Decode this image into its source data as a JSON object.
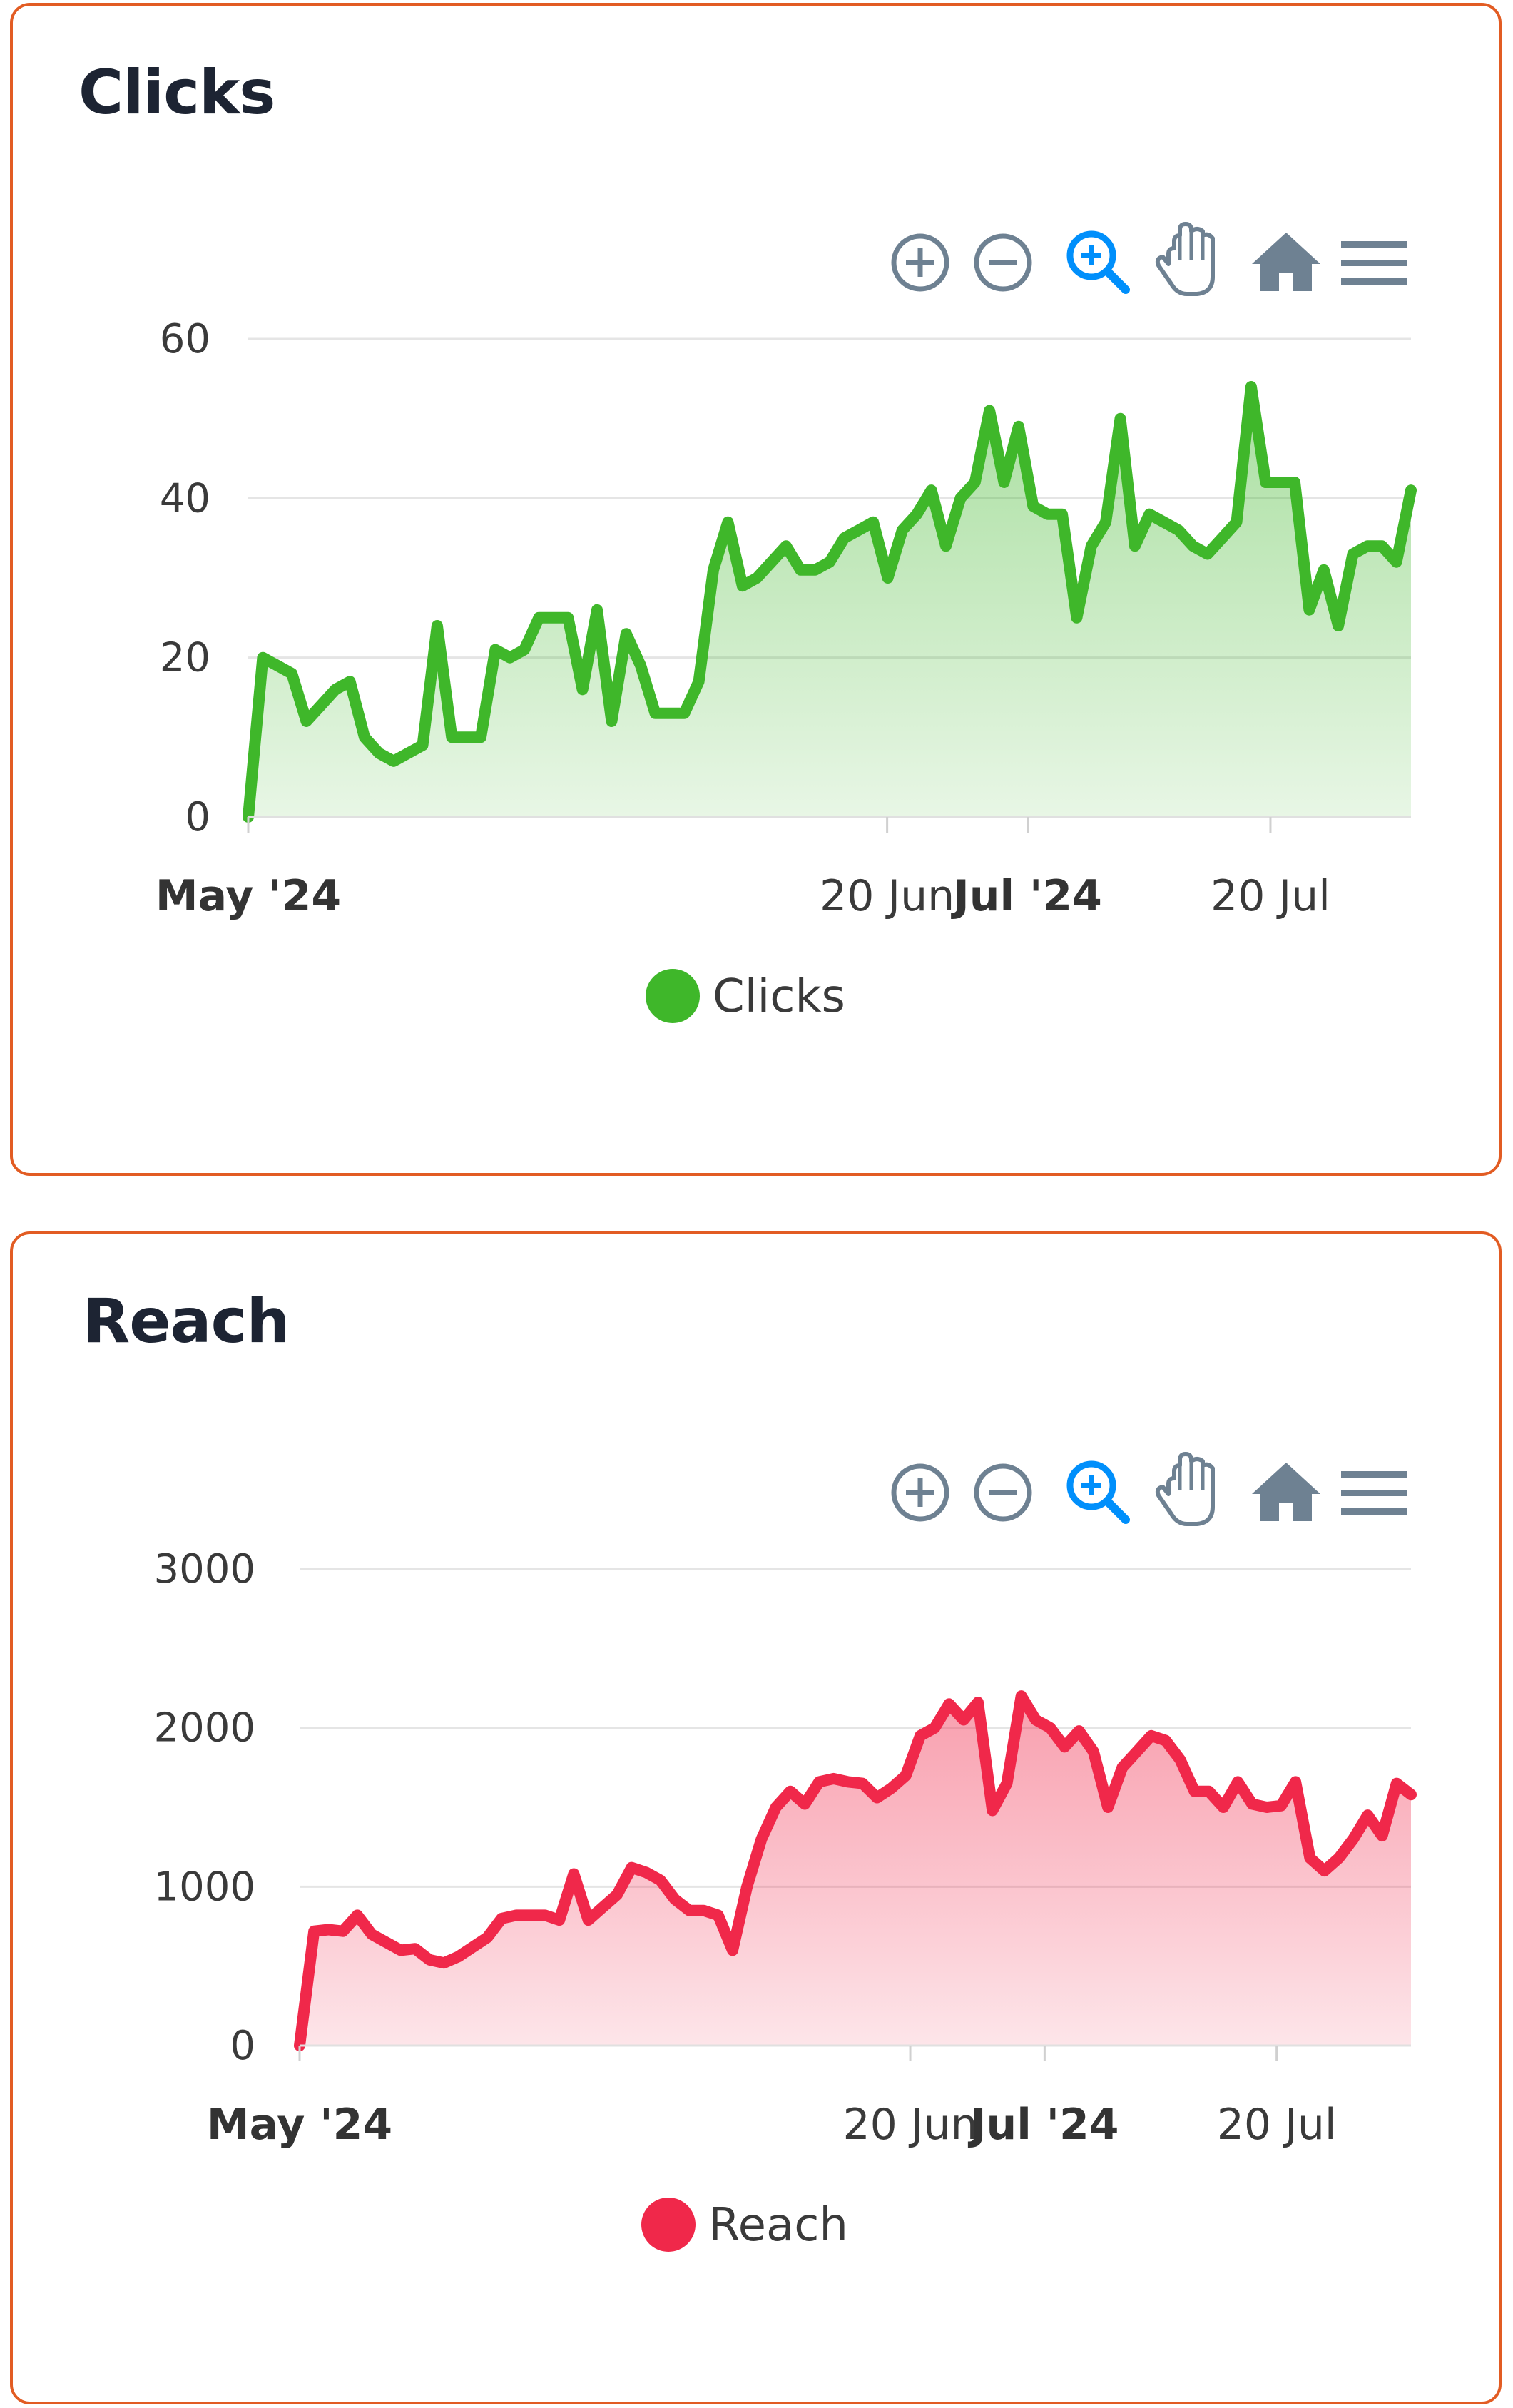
{
  "colors": {
    "card_border": "#e25c23",
    "title": "#1d2433",
    "toolbar_icon": "#6e8192",
    "toolbar_active": "#008ffb",
    "grid": "#e5e5e5"
  },
  "toolbar": {
    "icons": [
      "zoom-in-icon",
      "zoom-out-icon",
      "selection-zoom-icon",
      "pan-icon",
      "reset-home-icon",
      "menu-icon"
    ]
  },
  "chart_data": [
    {
      "type": "area",
      "title": "Clicks",
      "color": "#3fb72a",
      "x_start": "2024-05-01",
      "x_end": "2024-07-31",
      "ylim": [
        0,
        60
      ],
      "yticks": [
        0,
        20,
        40,
        60
      ],
      "xticks": [
        {
          "label": "May '24",
          "date": "2024-05-01",
          "major": true
        },
        {
          "label": "20 Jun",
          "date": "2024-06-20",
          "major": false
        },
        {
          "label": "Jul '24",
          "date": "2024-07-01",
          "major": true
        },
        {
          "label": "20 Jul",
          "date": "2024-07-20",
          "major": false
        }
      ],
      "legend": "bottom-center",
      "grid": true,
      "series": [
        {
          "name": "Clicks",
          "values": [
            0,
            20,
            19,
            18,
            12,
            14,
            16,
            17,
            10,
            8,
            7,
            8,
            9,
            24,
            10,
            10,
            10,
            21,
            20,
            21,
            25,
            25,
            25,
            16,
            26,
            12,
            23,
            19,
            13,
            13,
            13,
            17,
            31,
            37,
            29,
            30,
            32,
            34,
            31,
            31,
            32,
            35,
            36,
            37,
            30,
            36,
            38,
            41,
            34,
            40,
            42,
            51,
            42,
            49,
            39,
            38,
            38,
            25,
            34,
            37,
            50,
            34,
            38,
            37,
            36,
            34,
            33,
            35,
            37,
            54,
            42,
            42,
            42,
            26,
            31,
            24,
            33,
            34,
            34,
            32,
            41
          ]
        }
      ]
    },
    {
      "type": "area",
      "title": "Reach",
      "color": "#f0284a",
      "x_start": "2024-05-01",
      "x_end": "2024-07-31",
      "ylim": [
        0,
        3000
      ],
      "yticks": [
        0,
        1000,
        2000,
        3000
      ],
      "xticks": [
        {
          "label": "May '24",
          "date": "2024-05-01",
          "major": true
        },
        {
          "label": "20 Jun",
          "date": "2024-06-20",
          "major": false
        },
        {
          "label": "Jul '24",
          "date": "2024-07-01",
          "major": true
        },
        {
          "label": "20 Jul",
          "date": "2024-07-20",
          "major": false
        }
      ],
      "legend": "bottom-center",
      "grid": true,
      "series": [
        {
          "name": "Reach",
          "values": [
            0,
            720,
            730,
            720,
            820,
            700,
            650,
            600,
            610,
            540,
            520,
            560,
            620,
            680,
            800,
            820,
            820,
            820,
            790,
            1080,
            790,
            870,
            950,
            1120,
            1090,
            1040,
            920,
            850,
            850,
            820,
            600,
            1000,
            1300,
            1500,
            1600,
            1520,
            1660,
            1680,
            1660,
            1650,
            1560,
            1620,
            1700,
            1950,
            2000,
            2150,
            2050,
            2160,
            1480,
            1650,
            2200,
            2050,
            2000,
            1880,
            1980,
            1850,
            1500,
            1750,
            1850,
            1950,
            1920,
            1800,
            1600,
            1600,
            1500,
            1660,
            1520,
            1500,
            1510,
            1660,
            1180,
            1100,
            1180,
            1300,
            1450,
            1320,
            1650,
            1580
          ]
        }
      ]
    }
  ]
}
